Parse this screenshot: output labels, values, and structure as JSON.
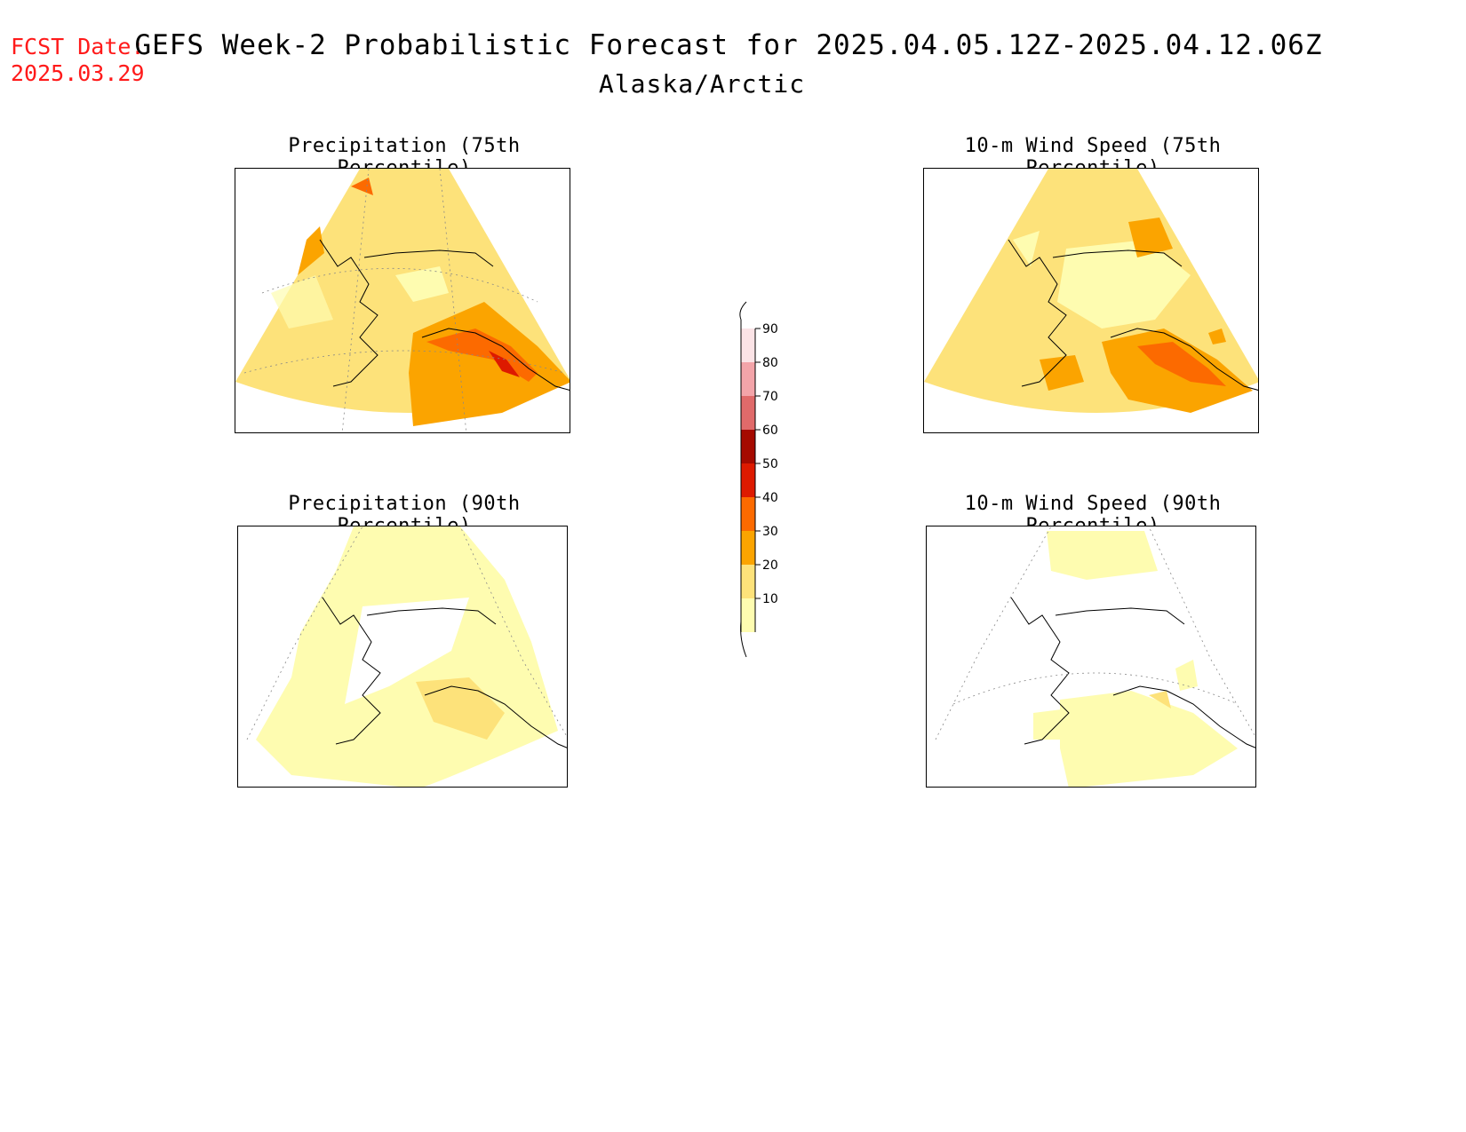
{
  "header": {
    "fcst_label": "FCST Date:",
    "fcst_date": "2025.03.29",
    "title": "GEFS Week-2 Probabilistic Forecast for 2025.04.05.12Z-2025.04.12.06Z",
    "subtitle": "Alaska/Arctic"
  },
  "panels": [
    {
      "id": "precip75",
      "title": "Precipitation (75th Percentile)"
    },
    {
      "id": "wind75",
      "title": "10-m Wind Speed (75th Percentile)"
    },
    {
      "id": "precip90",
      "title": "Precipitation (90th Percentile)"
    },
    {
      "id": "wind90",
      "title": "10-m Wind Speed (90th Percentile)"
    }
  ],
  "colorbar": {
    "levels": [
      {
        "label": "90",
        "color": "#fbe3e6"
      },
      {
        "label": "80",
        "color": "#f3a4a9"
      },
      {
        "label": "70",
        "color": "#e06a6a"
      },
      {
        "label": "60",
        "color": "#a50a00"
      },
      {
        "label": "50",
        "color": "#dd1a00"
      },
      {
        "label": "40",
        "color": "#fc6a00"
      },
      {
        "label": "30",
        "color": "#fba400"
      },
      {
        "label": "20",
        "color": "#fde27a"
      },
      {
        "label": "10",
        "color": "#fefcb0"
      }
    ]
  },
  "colors": {
    "fcst_text": "#ff1a1a",
    "light_yellow": "#fefcb0",
    "yellow": "#fde27a",
    "orange": "#fba400",
    "dark_orange": "#fc6a00",
    "red": "#dd1a00"
  }
}
